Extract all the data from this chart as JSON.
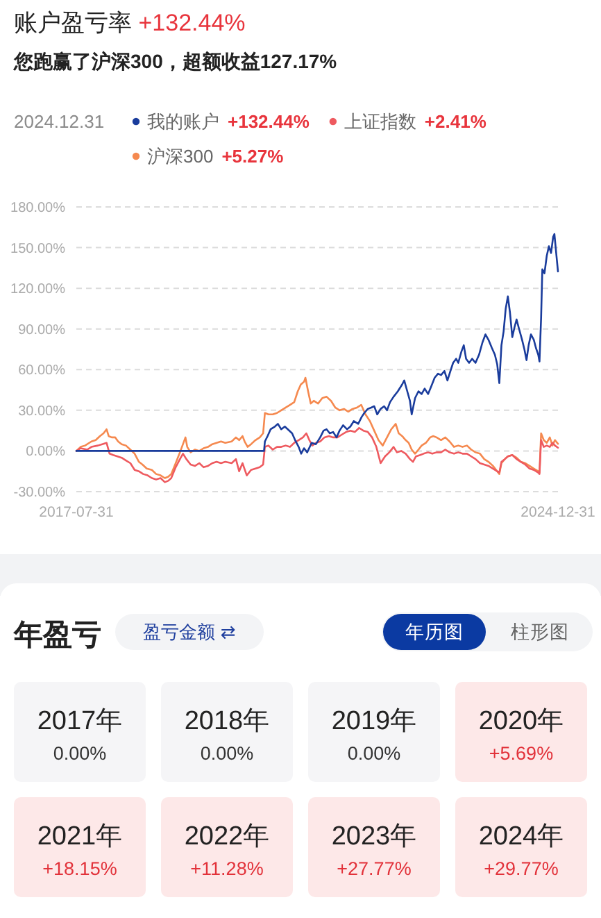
{
  "chart_data": [
    {
      "type": "line",
      "title": "账户盈亏率 +132.44%",
      "subtitle": "您跑赢了沪深300，超额收益127.17%",
      "legend_title": "2024.12.31",
      "legend": "top",
      "annotations": [
        "+132.44%",
        "+2.41%",
        "+5.27%"
      ],
      "xlim": [
        "2017-07-31",
        "2024-12-31"
      ],
      "xticks": [
        {
          "value": "2017-07-31",
          "label": "2017-07-31"
        },
        {
          "value": "2024-12-31",
          "label": "2024-12-31"
        }
      ],
      "ylim": [
        -30,
        180
      ],
      "yticks": [
        {
          "value": -30,
          "label": "-30.00%"
        },
        {
          "value": 0,
          "label": "0.00%"
        },
        {
          "value": 30,
          "label": "30.00%"
        },
        {
          "value": 60,
          "label": "60.00%"
        },
        {
          "value": 90,
          "label": "90.00%"
        },
        {
          "value": 120,
          "label": "120.00%"
        },
        {
          "value": 150,
          "label": "150.00%"
        },
        {
          "value": 180,
          "label": "180.00%"
        }
      ],
      "grid": "y",
      "series": [
        {
          "name": "我的账户",
          "color": "#1a3c9c",
          "x": [
            "2017-07-31",
            "2020-06-21",
            "2020-06-26",
            "2020-07-11",
            "2020-07-28",
            "2020-08-21",
            "2020-09-07",
            "2020-09-26",
            "2020-10-16",
            "2020-11-02",
            "2020-11-26",
            "2020-12-13",
            "2021-01-02",
            "2021-01-16",
            "2021-02-01",
            "2021-02-19",
            "2021-03-16",
            "2021-04-09",
            "2021-05-03",
            "2021-05-22",
            "2021-06-08",
            "2021-06-26",
            "2021-07-15",
            "2021-08-03",
            "2021-08-20",
            "2021-09-09",
            "2021-10-01",
            "2021-10-20",
            "2021-11-08",
            "2021-12-03",
            "2021-12-22",
            "2022-01-06",
            "2022-01-26",
            "2022-02-14",
            "2022-03-03",
            "2022-03-20",
            "2022-04-08",
            "2022-04-28",
            "2022-05-14",
            "2022-05-31",
            "2022-06-20",
            "2022-07-14",
            "2022-08-07",
            "2022-08-19",
            "2022-09-05",
            "2022-09-20",
            "2022-09-30",
            "2022-10-19",
            "2022-11-07",
            "2022-11-25",
            "2022-12-12",
            "2022-12-31",
            "2023-01-19",
            "2023-02-06",
            "2023-02-25",
            "2023-03-14",
            "2023-04-02",
            "2023-04-19",
            "2023-05-06",
            "2023-05-21",
            "2023-06-07",
            "2023-06-19",
            "2023-07-06",
            "2023-07-20",
            "2023-08-02",
            "2023-08-19",
            "2023-09-05",
            "2023-09-24",
            "2023-10-14",
            "2023-11-02",
            "2023-11-19",
            "2023-12-06",
            "2023-12-25",
            "2024-01-11",
            "2024-01-24",
            "2024-02-05",
            "2024-02-17",
            "2024-02-29",
            "2024-03-12",
            "2024-03-24",
            "2024-04-05",
            "2024-04-18",
            "2024-04-30",
            "2024-05-12",
            "2024-05-24",
            "2024-06-12",
            "2024-06-25",
            "2024-07-07",
            "2024-07-19",
            "2024-08-01",
            "2024-08-17",
            "2024-08-29",
            "2024-09-11",
            "2024-09-18",
            "2024-09-27",
            "2024-10-04",
            "2024-10-16",
            "2024-10-29",
            "2024-11-10",
            "2024-11-22",
            "2024-12-04",
            "2024-12-11",
            "2024-12-21",
            "2024-12-31"
          ],
          "values": [
            0,
            0,
            7,
            11,
            16,
            18,
            20,
            16,
            18,
            16,
            13,
            8,
            3,
            -2,
            2,
            -1,
            6,
            5,
            10,
            15,
            16,
            13,
            14,
            10,
            15,
            19,
            16,
            18,
            22,
            20,
            25,
            28,
            31,
            32,
            33,
            27,
            31,
            33,
            30,
            36,
            40,
            44,
            49,
            52,
            44,
            37,
            27,
            39,
            44,
            42,
            46,
            42,
            48,
            54,
            57,
            56,
            59,
            52,
            59,
            65,
            68,
            65,
            73,
            78,
            68,
            65,
            68,
            65,
            71,
            80,
            86,
            82,
            76,
            71,
            64,
            50,
            78,
            88,
            105,
            114,
            102,
            84,
            91,
            97,
            91,
            82,
            75,
            67,
            78,
            86,
            82,
            76,
            71,
            66,
            98,
            134,
            131,
            144,
            151,
            146,
            158,
            160,
            146,
            132.44
          ]
        },
        {
          "name": "上证指数",
          "color": "#ee5a5f",
          "x": [
            "2017-07-31",
            "2017-08-24",
            "2017-09-30",
            "2017-10-24",
            "2017-11-29",
            "2017-12-24",
            "2018-01-17",
            "2018-02-03",
            "2018-02-23",
            "2018-03-19",
            "2018-04-12",
            "2018-05-06",
            "2018-05-31",
            "2018-06-24",
            "2018-07-18",
            "2018-08-11",
            "2018-09-05",
            "2018-09-29",
            "2018-10-23",
            "2018-11-17",
            "2018-12-11",
            "2018-12-30",
            "2019-01-16",
            "2019-02-10",
            "2019-03-06",
            "2019-03-23",
            "2019-04-11",
            "2019-05-05",
            "2019-05-30",
            "2019-06-23",
            "2019-07-17",
            "2019-08-11",
            "2019-09-04",
            "2019-09-28",
            "2019-10-23",
            "2019-11-16",
            "2019-12-22",
            "2020-01-15",
            "2020-02-02",
            "2020-02-21",
            "2020-03-16",
            "2020-04-09",
            "2020-05-04",
            "2020-05-28",
            "2020-06-16",
            "2020-06-26",
            "2020-07-16",
            "2020-08-09",
            "2020-09-02",
            "2020-09-26",
            "2020-10-21",
            "2020-11-14",
            "2020-12-08",
            "2021-01-02",
            "2021-01-26",
            "2021-02-14",
            "2021-03-03",
            "2021-03-20",
            "2021-04-09",
            "2021-05-03",
            "2021-05-27",
            "2021-06-21",
            "2021-07-15",
            "2021-08-08",
            "2021-09-01",
            "2021-09-26",
            "2021-10-20",
            "2021-11-14",
            "2021-12-08",
            "2022-01-01",
            "2022-01-26",
            "2022-02-19",
            "2022-03-15",
            "2022-04-08",
            "2022-05-03",
            "2022-05-27",
            "2022-06-20",
            "2022-07-09",
            "2022-08-02",
            "2022-08-27",
            "2022-09-20",
            "2022-10-07",
            "2022-10-24",
            "2022-11-17",
            "2022-12-06",
            "2022-12-31",
            "2023-01-24",
            "2023-02-17",
            "2023-03-14",
            "2023-04-07",
            "2023-05-01",
            "2023-05-26",
            "2023-06-19",
            "2023-07-13",
            "2023-08-07",
            "2023-08-31",
            "2023-09-24",
            "2023-10-19",
            "2023-11-12",
            "2023-12-06",
            "2023-12-31",
            "2024-01-24",
            "2024-02-05",
            "2024-02-17",
            "2024-03-07",
            "2024-03-24",
            "2024-04-18",
            "2024-05-12",
            "2024-06-05",
            "2024-06-30",
            "2024-07-24",
            "2024-08-17",
            "2024-09-11",
            "2024-09-18",
            "2024-09-27",
            "2024-10-12",
            "2024-10-29",
            "2024-11-15",
            "2024-11-30",
            "2024-12-14",
            "2024-12-31"
          ],
          "values": [
            0,
            2,
            1,
            3,
            4,
            5,
            6,
            -2,
            -3,
            -4,
            -5,
            -7,
            -9,
            -14,
            -15,
            -17,
            -18,
            -20,
            -21,
            -20,
            -23,
            -22,
            -20,
            -12,
            -6,
            -2,
            -6,
            -10,
            -11,
            -9,
            -12,
            -11,
            -9,
            -8,
            -9,
            -8,
            -9,
            -6,
            -15,
            -9,
            -18,
            -14,
            -13,
            -12,
            -10,
            3,
            4,
            1,
            3,
            3,
            4,
            3,
            6,
            8,
            10,
            13,
            8,
            4,
            6,
            7,
            10,
            11,
            10,
            10,
            12,
            14,
            15,
            14,
            17,
            15,
            14,
            10,
            3,
            -9,
            -4,
            -1,
            3,
            -1,
            0,
            -2,
            -6,
            -8,
            -4,
            -3,
            -2,
            -1,
            -2,
            -1,
            -1,
            1,
            -1,
            -2,
            -1,
            -2,
            -2,
            -4,
            -6,
            -9,
            -10,
            -11,
            -13,
            -15,
            -16,
            -8,
            -6,
            -4,
            -3,
            -6,
            -8,
            -10,
            -13,
            -14,
            -16,
            -17,
            8,
            3,
            4,
            3,
            6,
            4,
            2.41
          ]
        },
        {
          "name": "沪深300",
          "color": "#f5894f",
          "x": [
            "2017-07-31",
            "2017-08-24",
            "2017-09-18",
            "2017-10-24",
            "2017-11-17",
            "2017-12-11",
            "2017-12-31",
            "2018-01-17",
            "2018-01-29",
            "2018-02-15",
            "2018-03-07",
            "2018-03-23",
            "2018-04-12",
            "2018-05-06",
            "2018-05-31",
            "2018-06-24",
            "2018-07-18",
            "2018-08-07",
            "2018-08-31",
            "2018-09-29",
            "2018-10-23",
            "2018-11-17",
            "2018-12-11",
            "2018-12-30",
            "2019-01-16",
            "2019-02-10",
            "2019-03-06",
            "2019-04-06",
            "2019-04-16",
            "2019-05-05",
            "2019-05-30",
            "2019-06-23",
            "2019-07-17",
            "2019-08-11",
            "2019-09-04",
            "2019-09-28",
            "2019-10-23",
            "2019-11-16",
            "2019-12-22",
            "2020-01-15",
            "2020-02-02",
            "2020-02-21",
            "2020-03-04",
            "2020-03-21",
            "2020-04-09",
            "2020-05-04",
            "2020-05-28",
            "2020-06-16",
            "2020-06-26",
            "2020-07-16",
            "2020-08-09",
            "2020-09-02",
            "2020-09-26",
            "2020-10-21",
            "2020-11-14",
            "2020-12-08",
            "2020-12-28",
            "2021-01-14",
            "2021-02-01",
            "2021-02-09",
            "2021-02-24",
            "2021-03-11",
            "2021-03-28",
            "2021-04-21",
            "2021-05-15",
            "2021-06-08",
            "2021-07-03",
            "2021-07-27",
            "2021-08-20",
            "2021-09-14",
            "2021-10-08",
            "2021-11-01",
            "2021-11-26",
            "2021-12-20",
            "2022-01-13",
            "2022-02-07",
            "2022-03-03",
            "2022-03-27",
            "2022-04-20",
            "2022-05-14",
            "2022-06-07",
            "2022-07-02",
            "2022-07-19",
            "2022-08-07",
            "2022-08-27",
            "2022-09-13",
            "2022-09-30",
            "2022-10-19",
            "2022-11-07",
            "2022-11-25",
            "2022-12-19",
            "2023-01-12",
            "2023-01-29",
            "2023-02-17",
            "2023-03-14",
            "2023-04-07",
            "2023-05-01",
            "2023-05-26",
            "2023-06-19",
            "2023-07-13",
            "2023-08-07",
            "2023-08-31",
            "2023-09-24",
            "2023-10-19",
            "2023-11-12",
            "2023-12-06",
            "2023-12-31",
            "2024-01-24",
            "2024-02-05",
            "2024-02-17",
            "2024-03-07",
            "2024-03-24",
            "2024-04-18",
            "2024-05-12",
            "2024-06-05",
            "2024-06-30",
            "2024-07-24",
            "2024-08-17",
            "2024-09-11",
            "2024-09-18",
            "2024-09-27",
            "2024-10-12",
            "2024-10-29",
            "2024-11-15",
            "2024-11-30",
            "2024-12-14",
            "2024-12-31"
          ],
          "values": [
            0,
            3,
            4,
            7,
            8,
            11,
            13,
            16,
            11,
            10,
            10,
            7,
            5,
            4,
            1,
            -2,
            -8,
            -10,
            -13,
            -14,
            -17,
            -18,
            -20,
            -19,
            -17,
            -9,
            -1,
            10,
            3,
            -1,
            1,
            0,
            2,
            3,
            5,
            6,
            7,
            6,
            7,
            10,
            8,
            11,
            7,
            3,
            5,
            8,
            10,
            13,
            28,
            27,
            27,
            28,
            30,
            32,
            34,
            36,
            44,
            49,
            51,
            54,
            44,
            35,
            37,
            35,
            39,
            40,
            37,
            32,
            30,
            31,
            29,
            31,
            32,
            34,
            27,
            22,
            15,
            8,
            4,
            10,
            16,
            20,
            13,
            11,
            8,
            6,
            1,
            -2,
            1,
            4,
            6,
            10,
            11,
            10,
            8,
            10,
            7,
            3,
            4,
            3,
            4,
            1,
            -1,
            -2,
            -6,
            -8,
            -11,
            -15,
            -17,
            -9,
            -6,
            -4,
            -3,
            -5,
            -8,
            -9,
            -11,
            -13,
            -15,
            -16,
            13,
            8,
            6,
            10,
            4,
            8,
            5.27
          ]
        }
      ]
    },
    {
      "type": "heatmap",
      "title": "年盈亏",
      "annotations": [
        "盈亏金额 ⇄",
        "年历图",
        "柱形图",
        "2017年",
        "2018年",
        "2019年",
        "2020年",
        "2021年",
        "2022年",
        "2023年",
        "2024年"
      ],
      "categories": [
        null,
        null,
        null,
        null
      ],
      "y_categories": [
        null,
        null
      ],
      "cells": [
        [
          0,
          0,
          0,
          5.69
        ],
        [
          18.15,
          11.28,
          27.77,
          29.77
        ]
      ],
      "cell_labels": [
        [
          "0.00%",
          "0.00%",
          "0.00%",
          "+5.69%"
        ],
        [
          "+18.15%",
          "+11.28%",
          "+27.77%",
          "+29.77%"
        ]
      ]
    }
  ]
}
